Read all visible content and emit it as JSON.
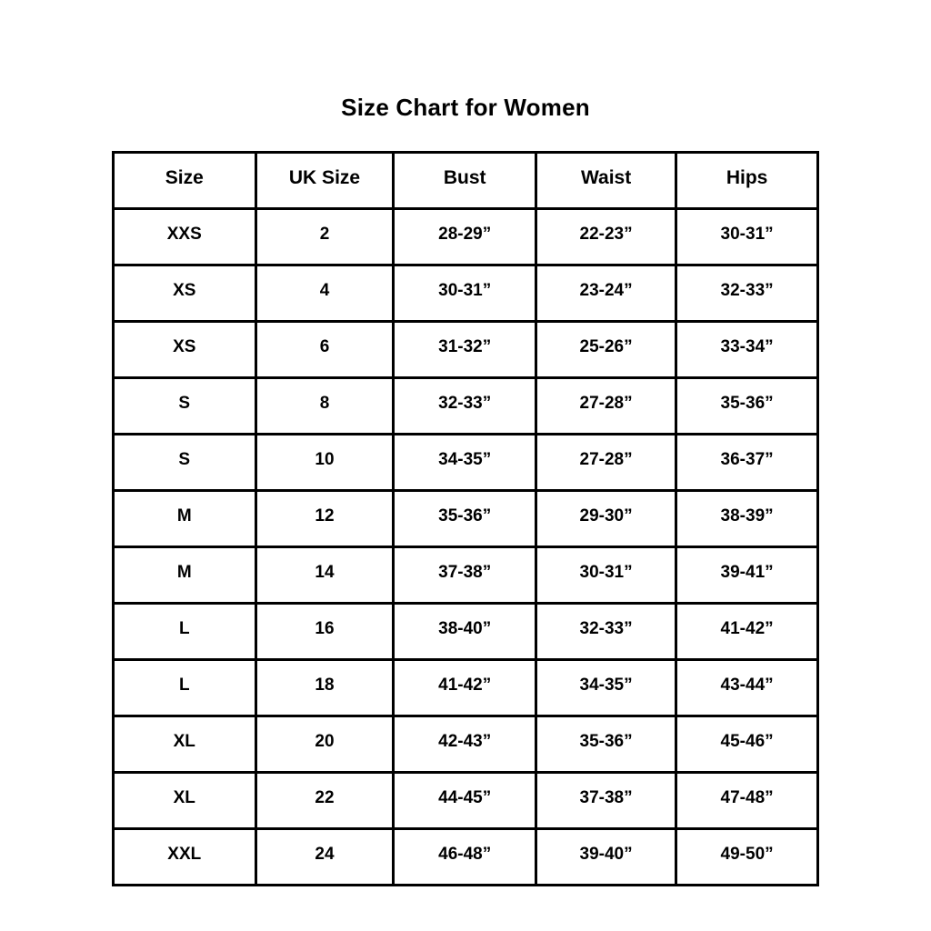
{
  "page": {
    "title": "Size Chart for Women"
  },
  "chart_data": {
    "type": "table",
    "title": "Size Chart for Women",
    "columns": [
      "Size",
      "UK Size",
      "Bust",
      "Waist",
      "Hips"
    ],
    "rows": [
      [
        "XXS",
        "2",
        "28-29”",
        "22-23”",
        "30-31”"
      ],
      [
        "XS",
        "4",
        "30-31”",
        "23-24”",
        "32-33”"
      ],
      [
        "XS",
        "6",
        "31-32”",
        "25-26”",
        "33-34”"
      ],
      [
        "S",
        "8",
        "32-33”",
        "27-28”",
        "35-36”"
      ],
      [
        "S",
        "10",
        "34-35”",
        "27-28”",
        "36-37”"
      ],
      [
        "M",
        "12",
        "35-36”",
        "29-30”",
        "38-39”"
      ],
      [
        "M",
        "14",
        "37-38”",
        "30-31”",
        "39-41”"
      ],
      [
        "L",
        "16",
        "38-40”",
        "32-33”",
        "41-42”"
      ],
      [
        "L",
        "18",
        "41-42”",
        "34-35”",
        "43-44”"
      ],
      [
        "XL",
        "20",
        "42-43”",
        "35-36”",
        "45-46”"
      ],
      [
        "XL",
        "22",
        "44-45”",
        "37-38”",
        "47-48”"
      ],
      [
        "XXL",
        "24",
        "46-48”",
        "39-40”",
        "49-50”"
      ]
    ],
    "text_color": "#000000",
    "border_color": "#000000",
    "background_color": "#ffffff",
    "layout_hints": {
      "title_position": "top-center",
      "grid": "all-borders",
      "units": "inches"
    }
  }
}
